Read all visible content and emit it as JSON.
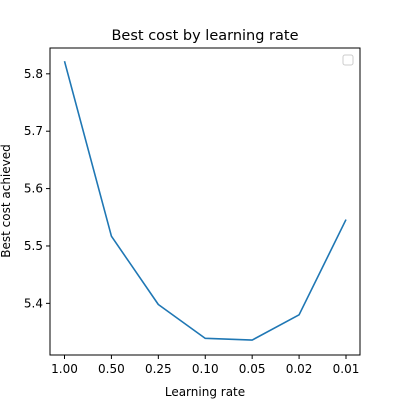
{
  "chart_data": {
    "type": "line",
    "title": "Best cost by learning rate",
    "xlabel": "Learning rate",
    "ylabel": "Best cost achieved",
    "categories": [
      "1.00",
      "0.50",
      "0.25",
      "0.10",
      "0.05",
      "0.02",
      "0.01"
    ],
    "series": [
      {
        "values": [
          5.822,
          5.517,
          5.398,
          5.339,
          5.336,
          5.38,
          5.546
        ]
      }
    ],
    "ylim": [
      5.31,
      5.845
    ],
    "yticks": [
      "5.4",
      "5.5",
      "5.6",
      "5.7",
      "5.8"
    ],
    "ytick_values": [
      5.4,
      5.5,
      5.6,
      5.7,
      5.8
    ],
    "grid": false,
    "legend": {
      "placement": "top-right",
      "entries": []
    },
    "line_color": "#1f77b4"
  }
}
